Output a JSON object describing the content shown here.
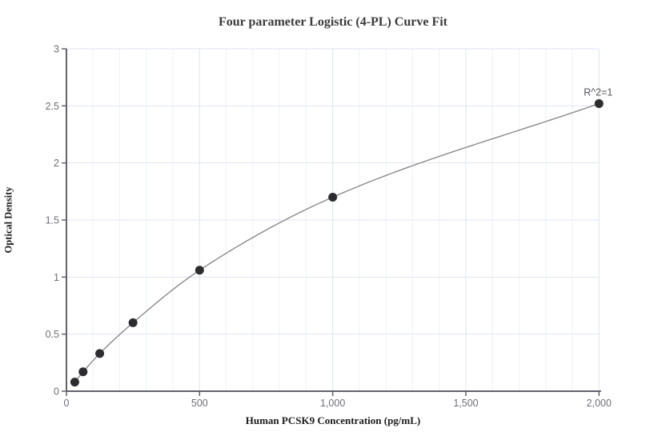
{
  "chart_data": {
    "type": "scatter",
    "title": "Four parameter Logistic (4-PL) Curve Fit",
    "xlabel": "Human PCSK9 Concentration (pg/mL)",
    "ylabel": "Optical Density",
    "fit_type": "4-PL curve through points",
    "series": [
      {
        "name": "Standard curve",
        "x": [
          31.25,
          62.5,
          125,
          250,
          500,
          1000,
          2000
        ],
        "y": [
          0.08,
          0.17,
          0.33,
          0.6,
          1.06,
          1.7,
          2.52
        ]
      }
    ],
    "annotation": {
      "text": "R^2=1",
      "at_x": 2000,
      "at_y": 2.52
    },
    "xlim": [
      0,
      2000
    ],
    "ylim": [
      0,
      3
    ],
    "x_ticks": [
      {
        "v": 0,
        "label": "0"
      },
      {
        "v": 500,
        "label": "500"
      },
      {
        "v": 1000,
        "label": "1,000"
      },
      {
        "v": 1500,
        "label": "1,500"
      },
      {
        "v": 2000,
        "label": "2,000"
      }
    ],
    "y_ticks": [
      {
        "v": 0,
        "label": "0"
      },
      {
        "v": 0.5,
        "label": "0.5"
      },
      {
        "v": 1,
        "label": "1"
      },
      {
        "v": 1.5,
        "label": "1.5"
      },
      {
        "v": 2,
        "label": "2"
      },
      {
        "v": 2.5,
        "label": "2.5"
      },
      {
        "v": 3,
        "label": "3"
      }
    ],
    "x_minor_step": 100,
    "grid": true,
    "legend": "none",
    "colors": {
      "background": "#ffffff",
      "axis_line": "#62626c",
      "tick_label": "#6e6e78",
      "grid_major": "#dee6f1",
      "grid_minor": "#eef1f9",
      "curve_line": "#8a8a8a",
      "point_fill": "#2d2d2f",
      "title_text": "#3b3b3b",
      "annotation_text": "#55565c"
    }
  }
}
